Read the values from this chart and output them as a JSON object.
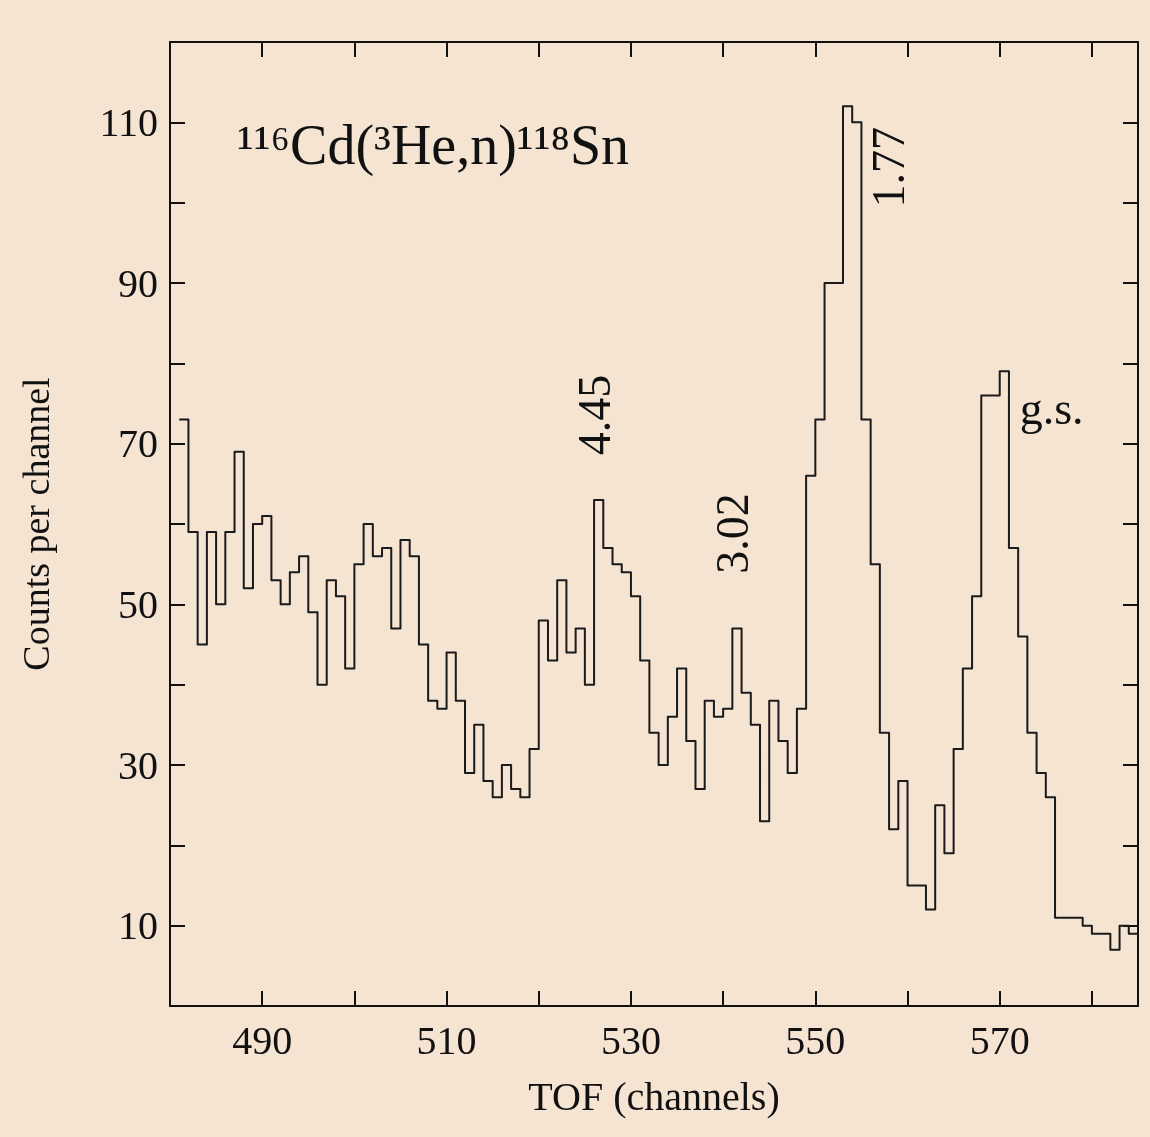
{
  "chart_data": {
    "type": "histogram",
    "title": "¹¹⁶Cd(³He,n)¹¹⁸Sn",
    "xlabel": "TOF (channels)",
    "ylabel": "Counts per channel",
    "bins": [
      481,
      482,
      483,
      484,
      485,
      486,
      487,
      488,
      489,
      490,
      491,
      492,
      493,
      494,
      495,
      496,
      497,
      498,
      499,
      500,
      501,
      502,
      503,
      504,
      505,
      506,
      507,
      508,
      509,
      510,
      511,
      512,
      513,
      514,
      515,
      516,
      517,
      518,
      519,
      520,
      521,
      522,
      523,
      524,
      525,
      526,
      527,
      528,
      529,
      530,
      531,
      532,
      533,
      534,
      535,
      536,
      537,
      538,
      539,
      540,
      541,
      542,
      543,
      544,
      545,
      546,
      547,
      548,
      549,
      550,
      551,
      552,
      553,
      554,
      555,
      556,
      557,
      558,
      559,
      560,
      561,
      562,
      563,
      564,
      565,
      566,
      567,
      568,
      569,
      570,
      571,
      572,
      573,
      574,
      575,
      576,
      577,
      578,
      579,
      580,
      581,
      582,
      583,
      584,
      585
    ],
    "values": [
      73,
      59,
      45,
      59,
      50,
      59,
      69,
      52,
      60,
      61,
      53,
      50,
      54,
      56,
      49,
      40,
      53,
      51,
      42,
      55,
      60,
      56,
      57,
      47,
      58,
      56,
      45,
      38,
      37,
      44,
      38,
      29,
      35,
      28,
      26,
      30,
      27,
      26,
      32,
      48,
      43,
      53,
      44,
      47,
      40,
      63,
      57,
      55,
      54,
      51,
      43,
      34,
      30,
      36,
      42,
      33,
      27,
      38,
      36,
      37,
      47,
      39,
      35,
      23,
      38,
      33,
      29,
      37,
      66,
      73,
      90,
      90,
      112,
      110,
      73,
      55,
      34,
      22,
      28,
      15,
      15,
      12,
      25,
      19,
      32,
      42,
      51,
      76,
      76,
      79,
      57,
      46,
      34,
      29,
      26,
      11,
      11,
      11,
      10,
      9,
      9,
      7,
      10,
      9
    ],
    "color": "#1a1a1a",
    "xlim": [
      480,
      585
    ],
    "xticks": [
      490,
      {
        "value": 500,
        "label": null
      },
      510,
      {
        "value": 520,
        "label": null
      },
      530,
      {
        "value": 540,
        "label": null
      },
      550,
      {
        "value": 560,
        "label": null
      },
      570,
      {
        "value": 580,
        "label": null
      }
    ],
    "ylim": [
      0,
      120
    ],
    "yticks": [
      10,
      {
        "value": 20,
        "label": null
      },
      30,
      {
        "value": 40,
        "label": null
      },
      50,
      {
        "value": 60,
        "label": null
      },
      70,
      {
        "value": 80,
        "label": null
      },
      90,
      {
        "value": 100,
        "label": null
      },
      110
    ],
    "annotations": [
      {
        "text": "4.45",
        "x": 526,
        "y": 63
      },
      {
        "text": "3.02",
        "x": 541,
        "y": 47
      },
      {
        "text": "1.77",
        "x": 554,
        "y": 110
      },
      {
        "text": "g.s.",
        "x": 570,
        "y": 79
      }
    ]
  }
}
